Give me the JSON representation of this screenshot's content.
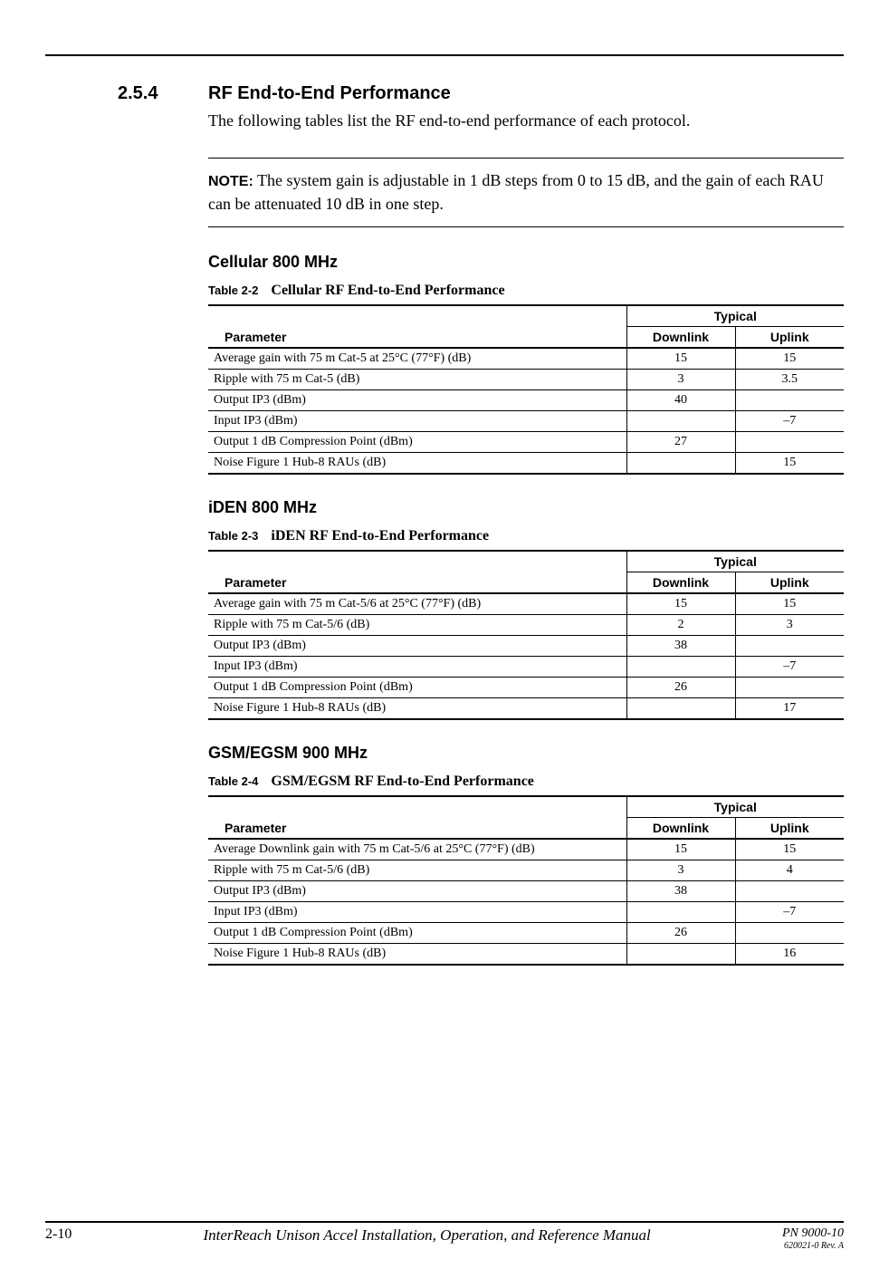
{
  "section": {
    "number": "2.5.4",
    "title": "RF End-to-End Performance",
    "intro": "The following tables list the RF end-to-end performance of each protocol."
  },
  "note": {
    "label": "NOTE:",
    "text": "The system gain is adjustable in 1 dB steps from 0 to 15 dB, and the gain of each RAU can be attenuated 10 dB in one step."
  },
  "headers": {
    "parameter": "Parameter",
    "typical": "Typical",
    "downlink": "Downlink",
    "uplink": "Uplink"
  },
  "tables": [
    {
      "subsection": "Cellular 800 MHz",
      "table_num": "Table 2-2",
      "table_title": "Cellular RF End-to-End Performance",
      "rows": [
        {
          "param": "Average gain with 75 m Cat-5 at 25°C (77°F) (dB)",
          "dl": "15",
          "ul": "15"
        },
        {
          "param": "Ripple with 75 m Cat-5 (dB)",
          "dl": "3",
          "ul": "3.5"
        },
        {
          "param": "Output IP3 (dBm)",
          "dl": "40",
          "ul": ""
        },
        {
          "param": "Input IP3 (dBm)",
          "dl": "",
          "ul": "–7"
        },
        {
          "param": "Output 1 dB Compression Point (dBm)",
          "dl": "27",
          "ul": ""
        },
        {
          "param": "Noise Figure 1 Hub-8 RAUs (dB)",
          "dl": "",
          "ul": "15"
        }
      ]
    },
    {
      "subsection": "iDEN 800 MHz",
      "table_num": "Table 2-3",
      "table_title": "iDEN RF End-to-End Performance",
      "rows": [
        {
          "param": "Average gain with 75 m Cat-5/6 at 25°C (77°F) (dB)",
          "dl": "15",
          "ul": "15"
        },
        {
          "param": "Ripple with 75 m Cat-5/6 (dB)",
          "dl": "2",
          "ul": "3"
        },
        {
          "param": "Output IP3 (dBm)",
          "dl": "38",
          "ul": ""
        },
        {
          "param": "Input IP3 (dBm)",
          "dl": "",
          "ul": "–7"
        },
        {
          "param": "Output 1 dB Compression Point (dBm)",
          "dl": "26",
          "ul": ""
        },
        {
          "param": "Noise Figure 1 Hub-8 RAUs (dB)",
          "dl": "",
          "ul": "17"
        }
      ]
    },
    {
      "subsection": "GSM/EGSM 900 MHz",
      "table_num": "Table 2-4",
      "table_title": "GSM/EGSM RF End-to-End Performance",
      "rows": [
        {
          "param": "Average Downlink gain with 75 m Cat-5/6 at 25°C (77°F) (dB)",
          "dl": "15",
          "ul": "15"
        },
        {
          "param": "Ripple with 75 m Cat-5/6 (dB)",
          "dl": "3",
          "ul": "4"
        },
        {
          "param": "Output IP3 (dBm)",
          "dl": "38",
          "ul": ""
        },
        {
          "param": "Input IP3 (dBm)",
          "dl": "",
          "ul": "–7"
        },
        {
          "param": "Output 1 dB Compression Point (dBm)",
          "dl": "26",
          "ul": ""
        },
        {
          "param": "Noise Figure 1 Hub-8 RAUs (dB)",
          "dl": "",
          "ul": "16"
        }
      ]
    }
  ],
  "footer": {
    "page_num": "2-10",
    "doc_title": "InterReach Unison Accel Installation, Operation, and Reference Manual",
    "pn": "PN 9000-10",
    "rev": "620021-0 Rev. A"
  }
}
